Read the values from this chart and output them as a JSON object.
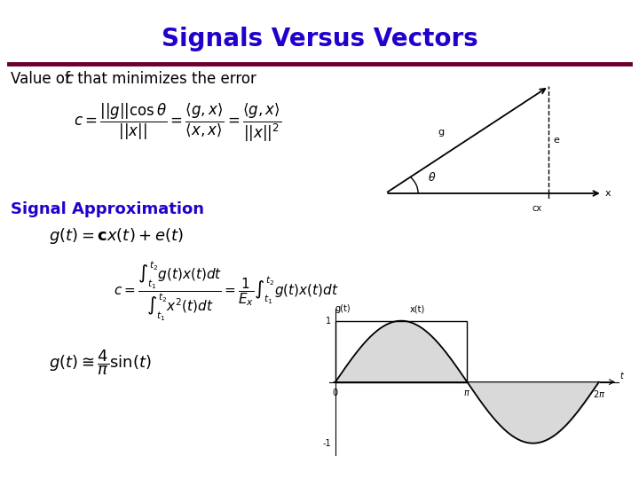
{
  "title": "Signals Versus Vectors",
  "title_color": "#2200CC",
  "title_fontsize": 20,
  "separator_color": "#6B0030",
  "separator_linewidth": 4,
  "bg_color": "#FFFFFF",
  "text_color": "#000000",
  "blue_heading_color": "#2200CC",
  "section1_label": "Value of \\textit{c} that minimizes the error",
  "section2_label": "Signal Approximation"
}
